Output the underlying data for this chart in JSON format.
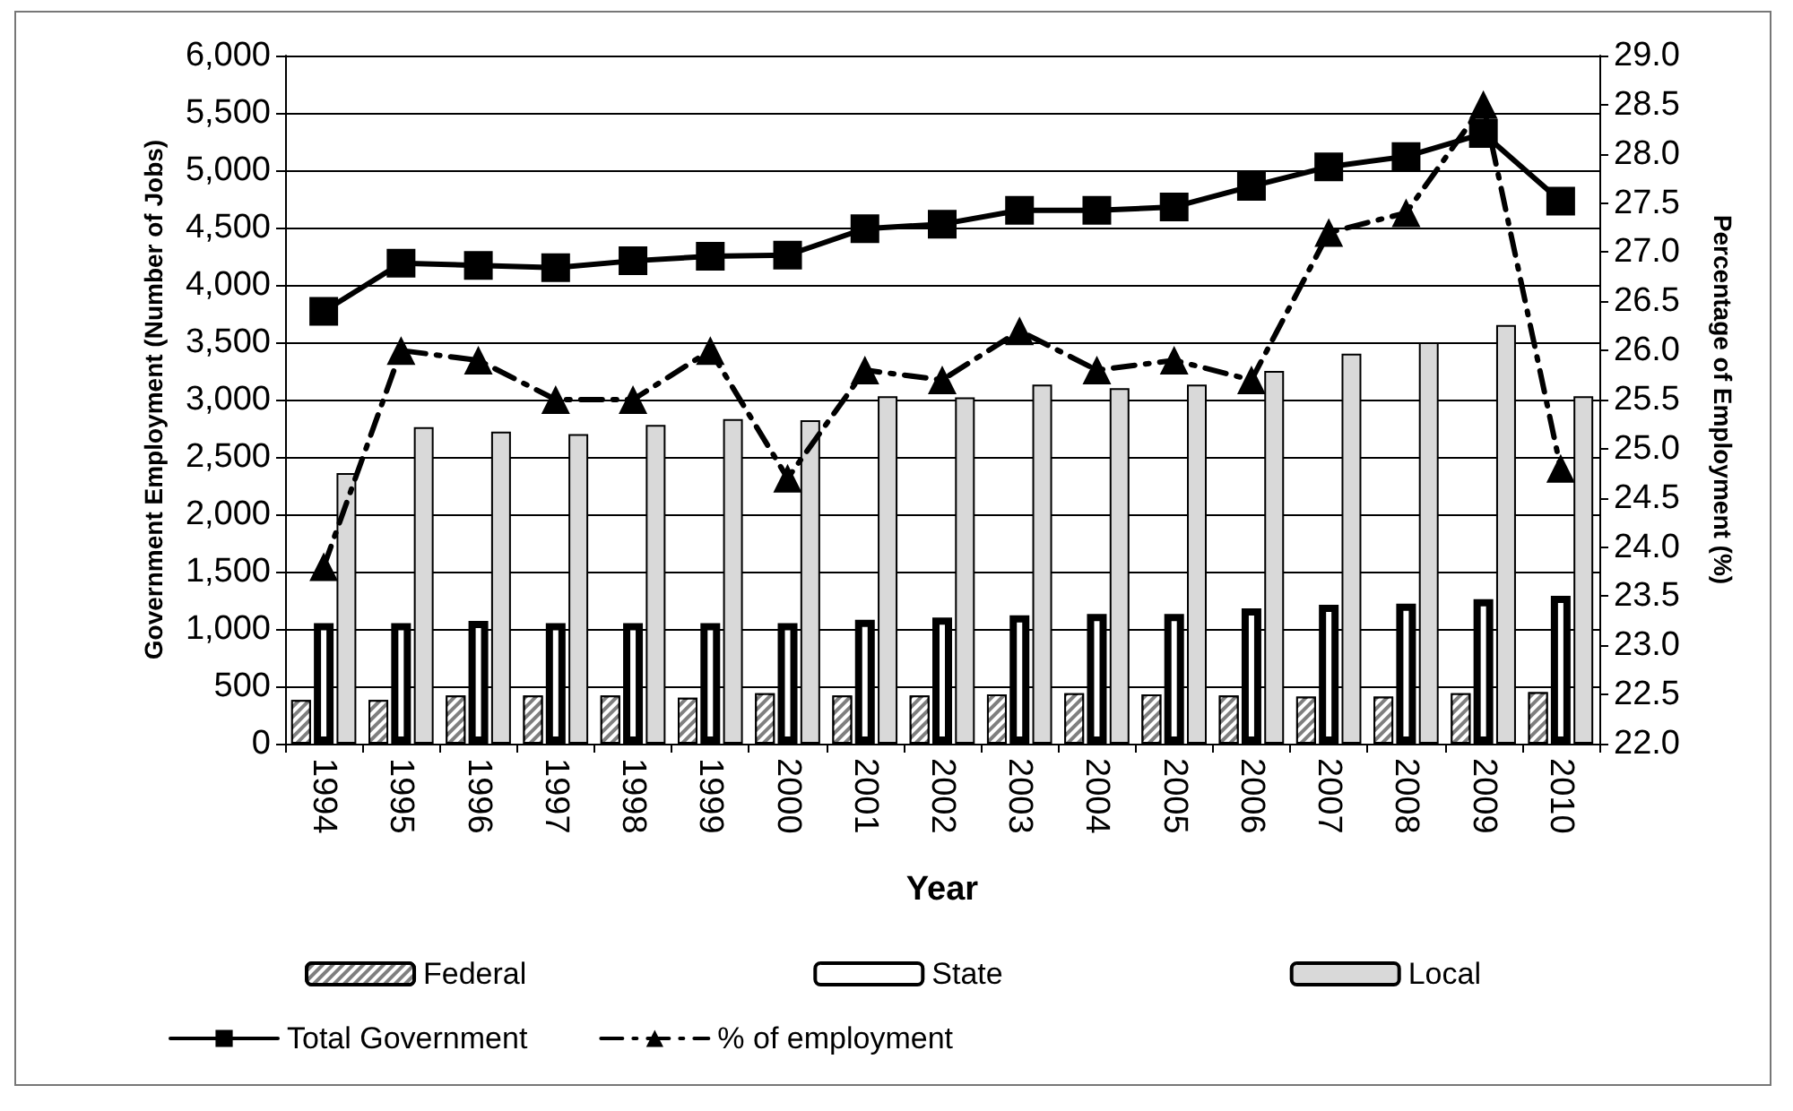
{
  "chart_data": {
    "type": "bar",
    "xlabel": "Year",
    "ylabel": "Government Employment (Number of Jobs)",
    "y2label": "Percentage of Employment (%)",
    "categories": [
      "1994",
      "1995",
      "1996",
      "1997",
      "1998",
      "1999",
      "2000",
      "2001",
      "2002",
      "2003",
      "2004",
      "2005",
      "2006",
      "2007",
      "2008",
      "2009",
      "2010"
    ],
    "series": [
      {
        "name": "Federal",
        "color": "#7f7f7f",
        "values": [
          380,
          380,
          420,
          420,
          420,
          400,
          440,
          420,
          420,
          430,
          440,
          430,
          420,
          410,
          410,
          440,
          450
        ]
      },
      {
        "name": "State",
        "color": "#ffffff",
        "values": [
          1050,
          1050,
          1070,
          1050,
          1050,
          1050,
          1050,
          1080,
          1100,
          1120,
          1130,
          1130,
          1180,
          1210,
          1220,
          1260,
          1290
        ]
      },
      {
        "name": "Local",
        "color": "#d9d9d9",
        "values": [
          2360,
          2760,
          2720,
          2700,
          2780,
          2830,
          2820,
          3030,
          3020,
          3130,
          3100,
          3130,
          3250,
          3400,
          3500,
          3650,
          3030
        ]
      },
      {
        "name": "Total Government",
        "type": "line",
        "color": "#000000",
        "marker": "square",
        "line_style": "solid",
        "values": [
          3770,
          4190,
          4170,
          4150,
          4210,
          4250,
          4260,
          4490,
          4530,
          4650,
          4650,
          4680,
          4860,
          5030,
          5120,
          5320,
          4730
        ]
      },
      {
        "name": "% of employment",
        "type": "line",
        "axis": "y2",
        "color": "#000000",
        "marker": "triangle",
        "line_style": "dashed",
        "values": [
          23.8,
          26.0,
          25.9,
          25.5,
          25.5,
          26.0,
          24.7,
          25.8,
          25.7,
          26.2,
          25.8,
          25.9,
          25.7,
          27.2,
          27.4,
          28.5,
          24.8
        ]
      }
    ],
    "ylim": [
      0,
      6000
    ],
    "yticks": [
      {
        "value": 0,
        "label": "0"
      },
      {
        "value": 500,
        "label": "500"
      },
      {
        "value": 1000,
        "label": "1,000"
      },
      {
        "value": 1500,
        "label": "1,500"
      },
      {
        "value": 2000,
        "label": "2,000"
      },
      {
        "value": 2500,
        "label": "2,500"
      },
      {
        "value": 3000,
        "label": "3,000"
      },
      {
        "value": 3500,
        "label": "3,500"
      },
      {
        "value": 4000,
        "label": "4,000"
      },
      {
        "value": 4500,
        "label": "4,500"
      },
      {
        "value": 5000,
        "label": "5,000"
      },
      {
        "value": 5500,
        "label": "5,500"
      },
      {
        "value": 6000,
        "label": "6,000"
      }
    ],
    "y2lim": [
      22,
      29
    ],
    "y2ticks": [
      {
        "value": 22,
        "label": "22.0"
      },
      {
        "value": 22.5,
        "label": "22.5"
      },
      {
        "value": 23,
        "label": "23.0"
      },
      {
        "value": 23.5,
        "label": "23.5"
      },
      {
        "value": 24,
        "label": "24.0"
      },
      {
        "value": 24.5,
        "label": "24.5"
      },
      {
        "value": 25,
        "label": "25.0"
      },
      {
        "value": 25.5,
        "label": "25.5"
      },
      {
        "value": 26,
        "label": "26.0"
      },
      {
        "value": 26.5,
        "label": "26.5"
      },
      {
        "value": 27,
        "label": "27.0"
      },
      {
        "value": 27.5,
        "label": "27.5"
      },
      {
        "value": 28,
        "label": "28.0"
      },
      {
        "value": 28.5,
        "label": "28.5"
      },
      {
        "value": 29,
        "label": "29.0"
      }
    ],
    "grid": "y",
    "legend": "bottom"
  }
}
